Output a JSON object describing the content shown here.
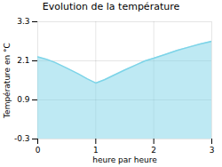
{
  "chart_data": {
    "type": "area",
    "title": "Evolution de la température",
    "xlabel": "heure par heure",
    "ylabel": "Température en °C",
    "x": [
      0,
      0.15,
      0.3,
      0.5,
      0.7,
      0.85,
      1.0,
      1.15,
      1.3,
      1.5,
      1.7,
      1.85,
      2.0,
      2.2,
      2.4,
      2.6,
      2.8,
      3.0
    ],
    "values": [
      2.22,
      2.15,
      2.05,
      1.88,
      1.7,
      1.55,
      1.42,
      1.52,
      1.65,
      1.82,
      1.98,
      2.1,
      2.18,
      2.3,
      2.42,
      2.52,
      2.62,
      2.7
    ],
    "color": "#7dd4e8",
    "xlim": [
      0,
      3
    ],
    "ylim": [
      -0.3,
      3.3
    ],
    "xticks": [
      0,
      1,
      2,
      3
    ],
    "yticks": [
      -0.3,
      0.9,
      2.1,
      3.3
    ],
    "grid": true
  }
}
